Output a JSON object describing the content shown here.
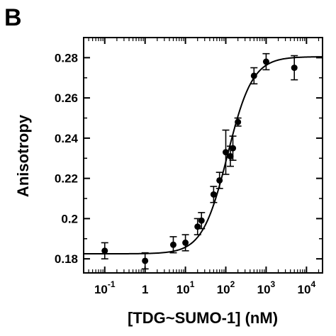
{
  "panel_label": "B",
  "chart_data": {
    "type": "scatter",
    "title": "",
    "xlabel": "[TDG~SUMO-1] (nM)",
    "ylabel": "Anisotropy",
    "xscale": "log",
    "xlim": [
      0.03,
      25000
    ],
    "ylim": [
      0.173,
      0.29
    ],
    "x_ticks": [
      {
        "value": 0.1,
        "base": "10",
        "exp": "-1"
      },
      {
        "value": 1,
        "base": "1",
        "exp": ""
      },
      {
        "value": 10,
        "base": "10",
        "exp": "1"
      },
      {
        "value": 100,
        "base": "10",
        "exp": "2"
      },
      {
        "value": 1000,
        "base": "10",
        "exp": "3"
      },
      {
        "value": 10000,
        "base": "10",
        "exp": "4"
      }
    ],
    "y_ticks": [
      {
        "value": 0.18,
        "label": "0.18"
      },
      {
        "value": 0.2,
        "label": "0.2"
      },
      {
        "value": 0.22,
        "label": "0.22"
      },
      {
        "value": 0.24,
        "label": "0.24"
      },
      {
        "value": 0.26,
        "label": "0.26"
      },
      {
        "value": 0.28,
        "label": "0.28"
      }
    ],
    "grid": false,
    "legend": "none",
    "points": [
      {
        "x": 0.1,
        "y": 0.184,
        "err": 0.004
      },
      {
        "x": 1,
        "y": 0.179,
        "err": 0.004
      },
      {
        "x": 5,
        "y": 0.187,
        "err": 0.004
      },
      {
        "x": 10,
        "y": 0.188,
        "err": 0.004
      },
      {
        "x": 20,
        "y": 0.196,
        "err": 0.004
      },
      {
        "x": 25,
        "y": 0.199,
        "err": 0.004
      },
      {
        "x": 50,
        "y": 0.212,
        "err": 0.004
      },
      {
        "x": 70,
        "y": 0.219,
        "err": 0.004
      },
      {
        "x": 100,
        "y": 0.233,
        "err": 0.011
      },
      {
        "x": 130,
        "y": 0.231,
        "err": 0.005
      },
      {
        "x": 150,
        "y": 0.235,
        "err": 0.006
      },
      {
        "x": 200,
        "y": 0.248,
        "err": 0.002
      },
      {
        "x": 500,
        "y": 0.271,
        "err": 0.004
      },
      {
        "x": 1000,
        "y": 0.278,
        "err": 0.004
      },
      {
        "x": 5000,
        "y": 0.275,
        "err": 0.006
      }
    ],
    "fit_curve": {
      "bottom": 0.1825,
      "top": 0.2805,
      "ec50": 110,
      "hill": 1.4
    },
    "colors": {
      "points": "#000000",
      "curve": "#000000",
      "axes": "#000000"
    }
  }
}
